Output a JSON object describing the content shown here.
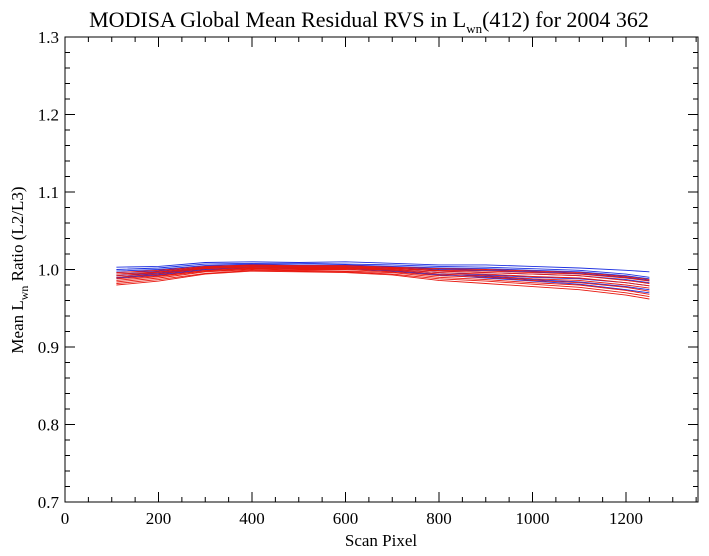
{
  "chart_data": {
    "type": "line",
    "title": {
      "prefix": "MODISA Global Mean Residual RVS in L",
      "subscript": "wn",
      "suffix": "(412) for 2004 362"
    },
    "xlabel": "Scan Pixel",
    "ylabel": {
      "prefix": "Mean L",
      "subscript": "wn",
      "suffix": " Ratio (L2/L3)"
    },
    "xlim": [
      0,
      1354
    ],
    "ylim": [
      0.7,
      1.3
    ],
    "x_ticks": [
      0,
      200,
      400,
      600,
      800,
      1000,
      1200
    ],
    "x_tick_labels": [
      "0",
      "200",
      "400",
      "600",
      "800",
      "1000",
      "1200"
    ],
    "x_minor_step": 50,
    "y_ticks": [
      0.7,
      0.8,
      0.9,
      1.0,
      1.1,
      1.2,
      1.3
    ],
    "y_tick_labels": [
      "0.7",
      "0.8",
      "0.9",
      "1.0",
      "1.1",
      "1.2",
      "1.3"
    ],
    "y_minor_step": 0.02,
    "grid": false,
    "colors": {
      "blue": "#1c2fe0",
      "red": "#e8180f",
      "axis": "#000000"
    },
    "x": [
      110,
      200,
      300,
      400,
      500,
      600,
      700,
      800,
      900,
      1000,
      1100,
      1200,
      1250
    ],
    "series": [
      {
        "color": "blue",
        "values": [
          1.003,
          1.004,
          1.009,
          1.01,
          1.009,
          1.01,
          1.008,
          1.006,
          1.006,
          1.004,
          1.002,
          0.999,
          0.997
        ]
      },
      {
        "color": "blue",
        "values": [
          1.0,
          1.002,
          1.007,
          1.008,
          1.008,
          1.007,
          1.006,
          1.004,
          1.003,
          1.001,
          0.999,
          0.994,
          0.99
        ]
      },
      {
        "color": "blue",
        "values": [
          0.998,
          1.0,
          1.005,
          1.007,
          1.006,
          1.006,
          1.004,
          1.002,
          1.001,
          0.999,
          0.997,
          0.992,
          0.988
        ]
      },
      {
        "color": "blue",
        "values": [
          0.996,
          0.998,
          1.004,
          1.006,
          1.005,
          1.005,
          1.003,
          1.0,
          0.999,
          0.997,
          0.995,
          0.99,
          0.986
        ]
      },
      {
        "color": "blue",
        "values": [
          0.994,
          0.996,
          1.003,
          1.005,
          1.004,
          1.004,
          1.002,
          0.998,
          0.996,
          0.994,
          0.992,
          0.987,
          0.983
        ]
      },
      {
        "color": "blue",
        "values": [
          0.992,
          0.995,
          1.002,
          1.004,
          1.003,
          1.003,
          1.0,
          0.996,
          0.993,
          0.99,
          0.988,
          0.983,
          0.979
        ]
      },
      {
        "color": "blue",
        "values": [
          0.99,
          0.994,
          1.001,
          1.003,
          1.002,
          1.002,
          0.999,
          0.994,
          0.991,
          0.987,
          0.984,
          0.978,
          0.974
        ]
      },
      {
        "color": "blue",
        "values": [
          0.989,
          0.993,
          1.0,
          1.002,
          1.001,
          1.001,
          0.998,
          0.993,
          0.989,
          0.985,
          0.981,
          0.974,
          0.97
        ]
      },
      {
        "color": "red",
        "values": [
          0.996,
          0.999,
          1.004,
          1.006,
          1.005,
          1.005,
          1.003,
          1.001,
          1.0,
          0.998,
          0.996,
          0.991,
          0.987
        ]
      },
      {
        "color": "red",
        "values": [
          0.994,
          0.997,
          1.003,
          1.005,
          1.004,
          1.004,
          1.002,
          0.999,
          0.998,
          0.996,
          0.994,
          0.989,
          0.985
        ]
      },
      {
        "color": "red",
        "values": [
          0.992,
          0.996,
          1.002,
          1.004,
          1.003,
          1.003,
          1.001,
          0.998,
          0.996,
          0.994,
          0.992,
          0.986,
          0.982
        ]
      },
      {
        "color": "red",
        "values": [
          0.99,
          0.994,
          1.001,
          1.003,
          1.002,
          1.002,
          1.0,
          0.996,
          0.994,
          0.991,
          0.989,
          0.983,
          0.979
        ]
      },
      {
        "color": "red",
        "values": [
          0.988,
          0.992,
          0.999,
          1.002,
          1.001,
          1.001,
          0.999,
          0.994,
          0.992,
          0.988,
          0.986,
          0.98,
          0.976
        ]
      },
      {
        "color": "red",
        "values": [
          0.986,
          0.991,
          0.998,
          1.001,
          1.0,
          1.0,
          0.997,
          0.992,
          0.99,
          0.986,
          0.983,
          0.977,
          0.972
        ]
      },
      {
        "color": "red",
        "values": [
          0.984,
          0.989,
          0.997,
          1.0,
          0.999,
          0.998,
          0.996,
          0.99,
          0.987,
          0.983,
          0.98,
          0.973,
          0.968
        ]
      },
      {
        "color": "red",
        "values": [
          0.982,
          0.987,
          0.995,
          0.999,
          0.998,
          0.997,
          0.994,
          0.988,
          0.985,
          0.981,
          0.977,
          0.97,
          0.965
        ]
      },
      {
        "color": "red",
        "values": [
          0.98,
          0.985,
          0.994,
          0.998,
          0.997,
          0.996,
          0.993,
          0.986,
          0.982,
          0.978,
          0.974,
          0.967,
          0.962
        ]
      }
    ]
  }
}
